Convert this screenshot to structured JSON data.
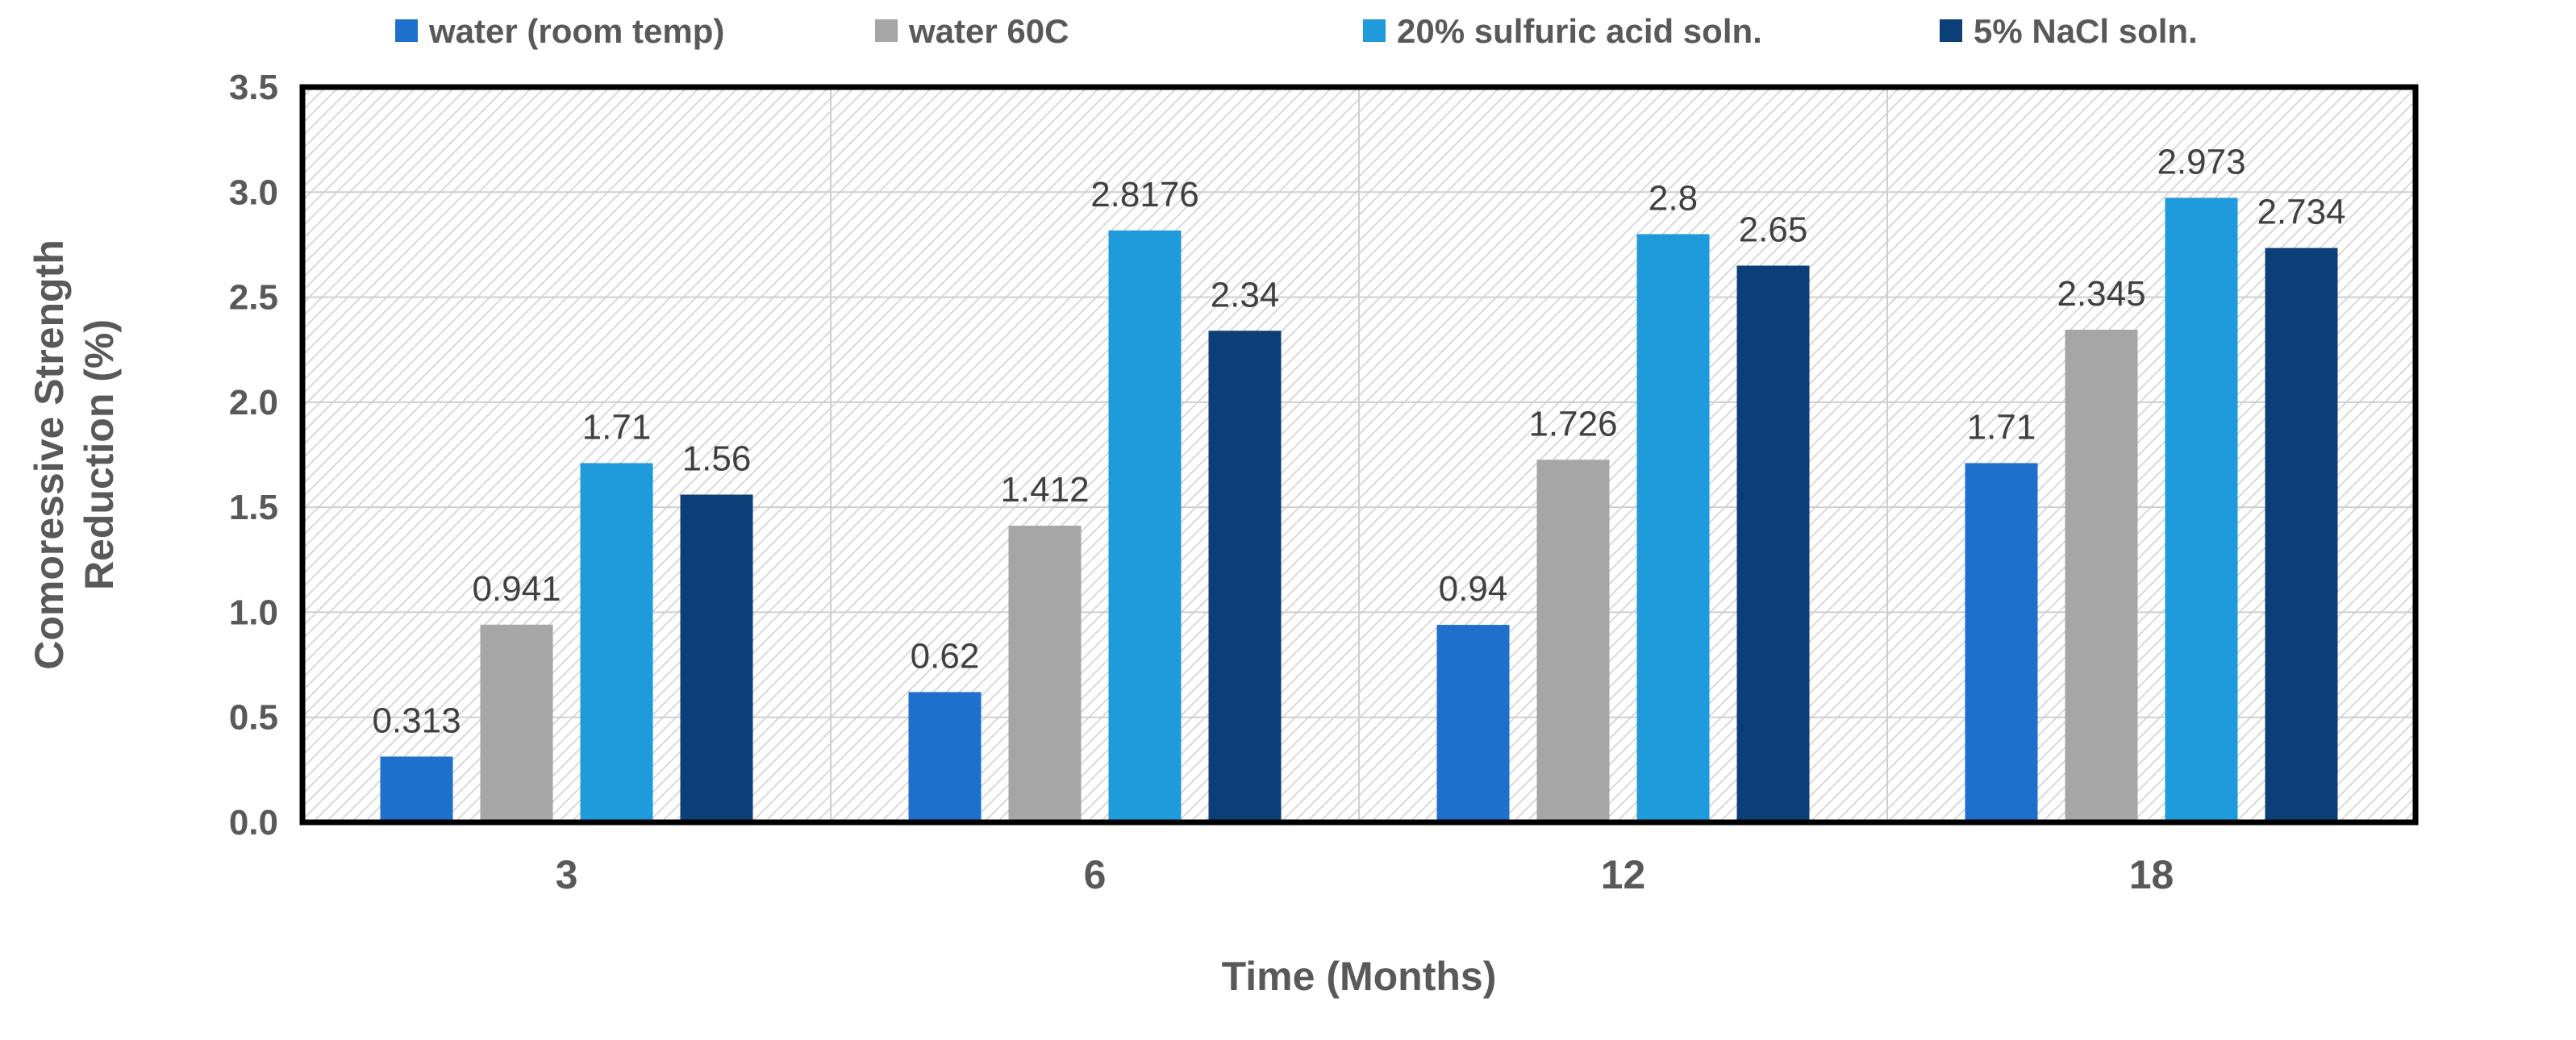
{
  "chart_data": {
    "type": "bar",
    "title": "",
    "xlabel": "Time (Months)",
    "ylabel_lines": [
      "Comoressive Strength",
      "Reduction (%)"
    ],
    "ylabel": "Comoressive Strength Reduction (%)",
    "categories": [
      "3",
      "6",
      "12",
      "18"
    ],
    "ylim": [
      0,
      3.5
    ],
    "yticks": [
      "0.0",
      "0.5",
      "1.0",
      "1.5",
      "2.0",
      "2.5",
      "3.0",
      "3.5"
    ],
    "grid": true,
    "legend_position": "top",
    "series": [
      {
        "name": "water (room temp)",
        "color": "#1F6FCC",
        "values": [
          0.313,
          0.62,
          0.94,
          1.71
        ],
        "labels": [
          "0.313",
          "0.62",
          "0.94",
          "1.71"
        ]
      },
      {
        "name": "water 60C",
        "color": "#A6A6A6",
        "values": [
          0.941,
          1.412,
          1.726,
          2.345
        ],
        "labels": [
          "0.941",
          "1.412",
          "1.726",
          "2.345"
        ]
      },
      {
        "name": "20% sulfuric acid soln.",
        "color": "#1F9BDB",
        "values": [
          1.71,
          2.8176,
          2.8,
          2.973
        ],
        "labels": [
          "1.71",
          "2.8176",
          "2.8",
          "2.973"
        ]
      },
      {
        "name": "5% NaCl soln.",
        "color": "#0C3F78",
        "values": [
          1.56,
          2.34,
          2.65,
          2.734
        ],
        "labels": [
          "1.56",
          "2.34",
          "2.65",
          "2.734"
        ]
      }
    ]
  }
}
